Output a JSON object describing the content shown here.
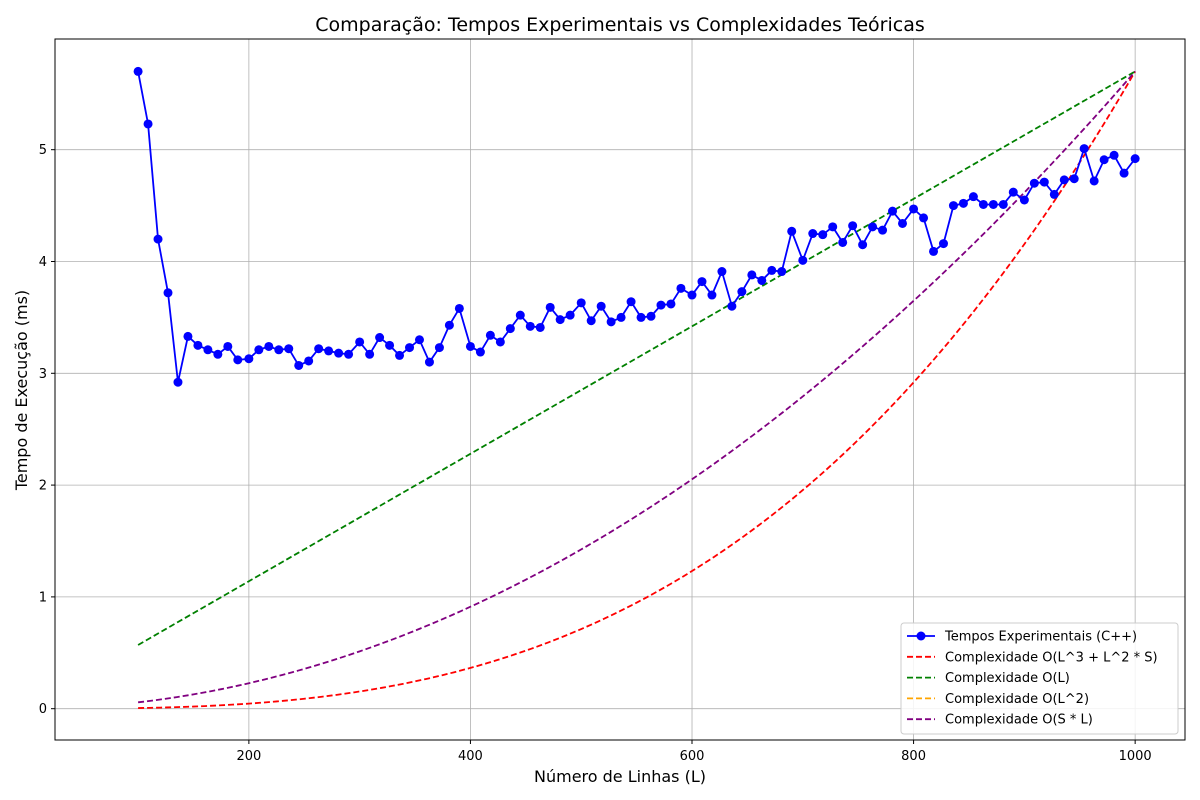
{
  "chart_data": {
    "type": "line",
    "title": "Comparação: Tempos Experimentais vs Complexidades Teóricas",
    "xlabel": "Número de Linhas (L)",
    "ylabel": "Tempo de Execução (ms)",
    "xlim": [
      25,
      1045
    ],
    "ylim": [
      -0.28,
      5.99
    ],
    "xticks": [
      200,
      400,
      600,
      800,
      1000
    ],
    "yticks": [
      0,
      1,
      2,
      3,
      4,
      5
    ],
    "grid": true,
    "legend_position": "bottom-right",
    "series": [
      {
        "name": "Tempos Experimentais (C++)",
        "color": "#0000ff",
        "style": "solid-marker",
        "x": [
          100,
          109,
          118,
          127,
          136,
          145,
          154,
          163,
          172,
          181,
          190,
          200,
          209,
          218,
          227,
          236,
          245,
          254,
          263,
          272,
          281,
          290,
          300,
          309,
          318,
          327,
          336,
          345,
          354,
          363,
          372,
          381,
          390,
          400,
          409,
          418,
          427,
          436,
          445,
          454,
          463,
          472,
          481,
          490,
          500,
          509,
          518,
          527,
          536,
          545,
          554,
          563,
          572,
          581,
          590,
          600,
          609,
          618,
          627,
          636,
          645,
          654,
          663,
          672,
          681,
          690,
          700,
          709,
          718,
          727,
          736,
          745,
          754,
          763,
          772,
          781,
          790,
          800,
          809,
          818,
          827,
          836,
          845,
          854,
          863,
          872,
          881,
          890,
          900,
          909,
          918,
          927,
          936,
          945,
          954,
          963,
          972,
          981,
          990,
          1000
        ],
        "y": [
          5.7,
          5.23,
          4.2,
          3.72,
          2.92,
          3.33,
          3.25,
          3.21,
          3.17,
          3.24,
          3.12,
          3.13,
          3.21,
          3.24,
          3.21,
          3.22,
          3.07,
          3.11,
          3.22,
          3.2,
          3.18,
          3.17,
          3.28,
          3.17,
          3.32,
          3.25,
          3.16,
          3.23,
          3.3,
          3.1,
          3.23,
          3.43,
          3.58,
          3.24,
          3.19,
          3.34,
          3.28,
          3.4,
          3.52,
          3.42,
          3.41,
          3.59,
          3.48,
          3.52,
          3.63,
          3.47,
          3.6,
          3.46,
          3.5,
          3.64,
          3.5,
          3.51,
          3.61,
          3.62,
          3.76,
          3.7,
          3.82,
          3.7,
          3.91,
          3.6,
          3.73,
          3.88,
          3.83,
          3.92,
          3.91,
          4.27,
          4.01,
          4.25,
          4.24,
          4.31,
          4.17,
          4.32,
          4.15,
          4.31,
          4.28,
          4.45,
          4.34,
          4.47,
          4.39,
          4.09,
          4.16,
          4.5,
          4.52,
          4.58,
          4.51,
          4.51,
          4.51,
          4.62,
          4.55,
          4.7,
          4.71,
          4.6,
          4.73,
          4.74,
          5.01,
          4.72,
          4.91,
          4.95,
          4.79,
          4.92
        ]
      },
      {
        "name": "Complexidade O(L^3 + L^2 * S)",
        "color": "#ff0000",
        "style": "dashed",
        "formula": "cubic"
      },
      {
        "name": "Complexidade O(L)",
        "color": "#008000",
        "style": "dashed",
        "formula": "linear"
      },
      {
        "name": "Complexidade O(L^2)",
        "color": "#ffa500",
        "style": "dashed",
        "formula": "hidden"
      },
      {
        "name": "Complexidade O(S * L)",
        "color": "#800080",
        "style": "dashed",
        "formula": "quadratic"
      }
    ]
  }
}
